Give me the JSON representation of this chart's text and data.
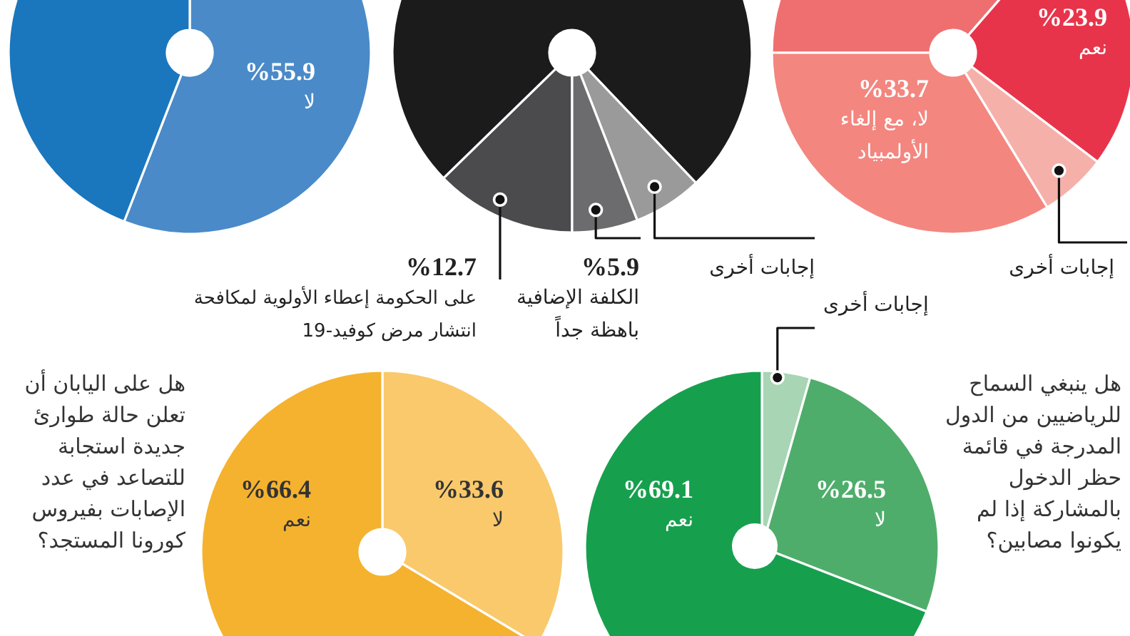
{
  "chart_data": [
    {
      "type": "donut",
      "categories": [
        "لا",
        null
      ],
      "values": [
        55.9,
        44.1
      ],
      "colors": [
        "#4a8ac8",
        "#1a77bd"
      ],
      "value_labels": [
        "%55.9",
        null
      ]
    },
    {
      "type": "donut",
      "categories": [
        "على الحكومة إعطاء الأولوية لمكافحة انتشار مرض كوفيد-19",
        null,
        "إجابات أخرى",
        "الكلفة الإضافية باهظة جداً"
      ],
      "values": [
        12.7,
        75.2,
        6.2,
        5.9
      ],
      "colors": [
        "#4b4b4d",
        "#1c1b1c",
        "#9a9a9a",
        "#6c6c6e"
      ],
      "value_labels": [
        "%12.7",
        null,
        null,
        "%5.9"
      ]
    },
    {
      "type": "donut",
      "categories": [
        null,
        "نعم",
        "إجابات أخرى",
        "لا، مع إلغاء الأولمبياد"
      ],
      "values": [
        36.4,
        23.9,
        6.0,
        33.7
      ],
      "colors": [
        "#ef6f70",
        "#e8344b",
        "#f6b0aa",
        "#f3867f"
      ],
      "value_labels": [
        null,
        "%23.9",
        null,
        "%33.7"
      ]
    },
    {
      "type": "donut",
      "title": "هل على اليابان أن تعلن حالة طوارئ جديدة استجابة للتصاعد في عدد الإصابات بفيروس كورونا المستجد؟",
      "categories": [
        "لا",
        "نعم"
      ],
      "values": [
        33.6,
        66.4
      ],
      "colors": [
        "#f9c96c",
        "#f5b22e"
      ],
      "value_labels": [
        "%33.6",
        "%66.4"
      ]
    },
    {
      "type": "pie",
      "title": "هل ينبغي السماح للرياضيين من الدول المدرجة في قائمة حظر الدخول بالمشاركة إذا لم يكونوا مصابين؟",
      "categories": [
        "إجابات أخرى",
        "لا",
        "نعم"
      ],
      "values": [
        4.4,
        26.5,
        69.1
      ],
      "colors": [
        "#a8d5b3",
        "#4fad6b",
        "#16a04e"
      ],
      "value_labels": [
        null,
        "%26.5",
        "%69.1"
      ]
    }
  ]
}
